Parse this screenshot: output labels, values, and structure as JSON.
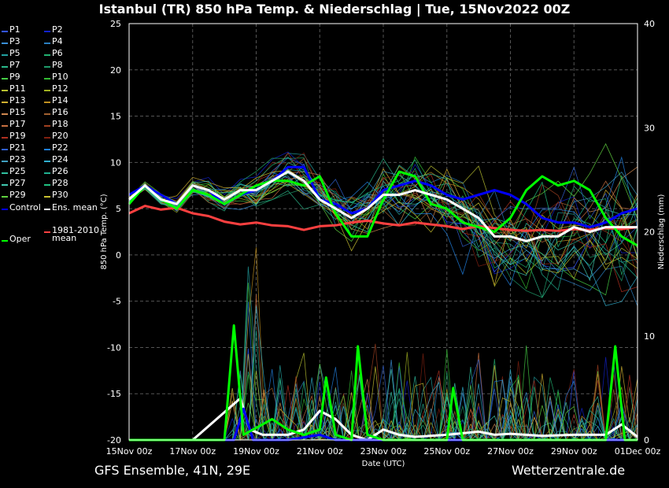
{
  "title": "Istanbul  (TR)  850 hPa Temp. & Niederschlag | Tue, 15Nov2022 00Z",
  "footer": {
    "left": "GFS Ensemble, 41N, 29E",
    "right": "Wetterzentrale.de"
  },
  "legend": [
    {
      "label": "P1",
      "color": "#3355ff"
    },
    {
      "label": "P2",
      "color": "#1122cc"
    },
    {
      "label": "P3",
      "color": "#3a8fd8"
    },
    {
      "label": "P4",
      "color": "#2a7fc0"
    },
    {
      "label": "P5",
      "color": "#22a0a0"
    },
    {
      "label": "P6",
      "color": "#22b070"
    },
    {
      "label": "P7",
      "color": "#2ab88a"
    },
    {
      "label": "P8",
      "color": "#1e9a6a"
    },
    {
      "label": "P9",
      "color": "#44cc44"
    },
    {
      "label": "P10",
      "color": "#33bb33"
    },
    {
      "label": "P11",
      "color": "#b8c030"
    },
    {
      "label": "P12",
      "color": "#a0b020"
    },
    {
      "label": "P13",
      "color": "#d0b030"
    },
    {
      "label": "P14",
      "color": "#c09020"
    },
    {
      "label": "P15",
      "color": "#d08850"
    },
    {
      "label": "P16",
      "color": "#a06030"
    },
    {
      "label": "P17",
      "color": "#c87040"
    },
    {
      "label": "P18",
      "color": "#a04020"
    },
    {
      "label": "P19",
      "color": "#b03020"
    },
    {
      "label": "P20",
      "color": "#802010"
    },
    {
      "label": "P21",
      "color": "#3060d0"
    },
    {
      "label": "P22",
      "color": "#2080e0"
    },
    {
      "label": "P23",
      "color": "#40a0c0"
    },
    {
      "label": "P24",
      "color": "#30b0d0"
    },
    {
      "label": "P25",
      "color": "#30c0a0"
    },
    {
      "label": "P26",
      "color": "#20b090"
    },
    {
      "label": "P27",
      "color": "#40c8b0"
    },
    {
      "label": "P28",
      "color": "#20c080"
    },
    {
      "label": "P29",
      "color": "#60d040"
    },
    {
      "label": "P30",
      "color": "#c8c030"
    },
    {
      "label": "Control",
      "color": "#0000ff"
    },
    {
      "label": "Ens. mean",
      "color": "#ffffff"
    },
    {
      "label": "Oper",
      "color": "#00ff00"
    },
    {
      "label": "1981-2010\nmean",
      "color": "#ff4040"
    }
  ],
  "chart_data": {
    "type": "line",
    "title": "Istanbul  (TR)  850 hPa Temp. & Niederschlag | Tue, 15Nov2022 00Z",
    "xlabel": "Date (UTC)",
    "ylabel": "850 hPa Temp. (°C)",
    "y2label": "Niederschlag (mm)",
    "x_ticks": [
      "15Nov 00z",
      "17Nov 00z",
      "19Nov 00z",
      "21Nov 00z",
      "23Nov 00z",
      "25Nov 00z",
      "27Nov 00z",
      "29Nov 00z",
      "01Dec 00z"
    ],
    "x_range_days": [
      0,
      16
    ],
    "ylim": [
      -20,
      25
    ],
    "y_ticks": [
      -20,
      -15,
      -10,
      -5,
      0,
      5,
      10,
      15,
      20,
      25
    ],
    "y2lim": [
      0,
      40
    ],
    "y2_ticks": [
      0,
      10,
      20,
      30,
      40
    ],
    "grid": true,
    "legend_position": "left",
    "series": [
      {
        "name": "Ens. mean",
        "color": "#ffffff",
        "axis": "temp",
        "x": [
          0,
          0.5,
          1,
          1.5,
          2,
          2.5,
          3,
          3.5,
          4,
          4.5,
          5,
          5.5,
          6,
          6.5,
          7,
          7.5,
          8,
          8.5,
          9,
          9.5,
          10,
          10.5,
          11,
          11.5,
          12,
          12.5,
          13,
          13.5,
          14,
          14.5,
          15,
          15.5,
          16
        ],
        "y": [
          6.0,
          7.5,
          6.0,
          5.5,
          7.5,
          7.0,
          6.0,
          7.0,
          7.0,
          8.0,
          9.0,
          8.0,
          6.0,
          5.0,
          4.0,
          5.0,
          6.5,
          6.5,
          7.0,
          6.5,
          6.0,
          5.0,
          4.0,
          2.0,
          2.0,
          1.5,
          2.0,
          2.0,
          3.0,
          2.5,
          3.0,
          3.0,
          3.0
        ]
      },
      {
        "name": "Control",
        "color": "#0000ff",
        "axis": "temp",
        "x": [
          0,
          0.5,
          1,
          1.5,
          2,
          2.5,
          3,
          3.5,
          4,
          4.5,
          5,
          5.5,
          6,
          6.5,
          7,
          7.5,
          8,
          8.5,
          9,
          9.5,
          10,
          10.5,
          11,
          11.5,
          12,
          12.5,
          13,
          13.5,
          14,
          14.5,
          15,
          15.5,
          16
        ],
        "y": [
          6.5,
          7.5,
          6.5,
          5.5,
          7.5,
          7.0,
          5.5,
          6.5,
          7.0,
          8.0,
          9.5,
          9.5,
          6.0,
          5.5,
          4.5,
          5.0,
          7.0,
          7.5,
          8.0,
          7.5,
          6.5,
          6.0,
          6.5,
          7.0,
          6.5,
          5.5,
          4.0,
          3.5,
          3.5,
          3.0,
          3.5,
          4.5,
          5.0
        ]
      },
      {
        "name": "Oper",
        "color": "#00ff00",
        "axis": "temp",
        "x": [
          0,
          0.5,
          1,
          1.5,
          2,
          2.5,
          3,
          3.5,
          4,
          4.5,
          5,
          5.5,
          6,
          6.5,
          7,
          7.5,
          8,
          8.5,
          9,
          9.5,
          10,
          10.5,
          11,
          11.5,
          12,
          12.5,
          13,
          13.5,
          14,
          14.5,
          15,
          15.5,
          16
        ],
        "y": [
          5.5,
          7.5,
          6.0,
          5.0,
          7.0,
          6.5,
          5.5,
          6.5,
          7.5,
          8.0,
          8.0,
          7.5,
          8.5,
          4.5,
          2.0,
          2.0,
          6.0,
          9.0,
          8.5,
          5.5,
          5.0,
          3.5,
          3.0,
          2.5,
          4.0,
          7.0,
          8.5,
          7.5,
          8.0,
          7.0,
          4.0,
          2.0,
          1.0
        ]
      },
      {
        "name": "1981-2010\nmean",
        "color": "#ff4040",
        "axis": "temp",
        "x": [
          0,
          0.5,
          1,
          1.5,
          2,
          2.5,
          3,
          3.5,
          4,
          4.5,
          5,
          5.5,
          6,
          6.5,
          7,
          7.5,
          8,
          8.5,
          9,
          9.5,
          10,
          10.5,
          11,
          11.5,
          12,
          12.5,
          13,
          13.5,
          14,
          14.5,
          15,
          15.5,
          16
        ],
        "y": [
          4.5,
          5.3,
          4.9,
          5.1,
          4.5,
          4.2,
          3.6,
          3.3,
          3.5,
          3.2,
          3.1,
          2.7,
          3.1,
          3.2,
          3.5,
          3.7,
          3.4,
          3.2,
          3.5,
          3.3,
          3.1,
          2.8,
          3.1,
          2.9,
          2.7,
          2.6,
          2.7,
          2.6,
          2.8,
          2.7,
          2.9,
          2.8,
          3.0
        ]
      },
      {
        "name": "Ens. mean",
        "color": "#ffffff",
        "axis": "precip",
        "x": [
          0,
          2,
          3.5,
          3.8,
          4.2,
          5,
          5.5,
          6,
          6.5,
          7,
          7.5,
          8,
          8.5,
          9,
          10,
          11,
          11.5,
          12,
          13,
          14,
          15,
          15.5,
          16
        ],
        "y": [
          0,
          0,
          4,
          1,
          0.5,
          0.5,
          1,
          2.8,
          2,
          0.5,
          0,
          1,
          0.5,
          0.3,
          0.5,
          0.8,
          0.5,
          0.6,
          0.4,
          0.5,
          0.5,
          1.5,
          0.3
        ]
      },
      {
        "name": "Control",
        "color": "#0000ff",
        "axis": "precip",
        "x": [
          0,
          3.3,
          3.6,
          3.9,
          5,
          6,
          6.5,
          7,
          16
        ],
        "y": [
          0,
          0,
          3,
          0,
          0,
          0.5,
          0,
          0,
          0
        ]
      },
      {
        "name": "Oper",
        "color": "#00ff00",
        "axis": "precip",
        "x": [
          0,
          3.0,
          3.3,
          3.6,
          4.5,
          5,
          5.5,
          6,
          6.2,
          6.5,
          7,
          7.2,
          7.5,
          8,
          10,
          10.2,
          10.5,
          11,
          15,
          15.3,
          15.6,
          16
        ],
        "y": [
          0,
          0,
          11,
          0.5,
          2,
          1,
          0.5,
          1,
          6,
          0.5,
          0,
          9,
          0.5,
          0,
          0,
          5,
          0,
          0,
          0,
          9,
          0,
          0
        ]
      }
    ]
  }
}
